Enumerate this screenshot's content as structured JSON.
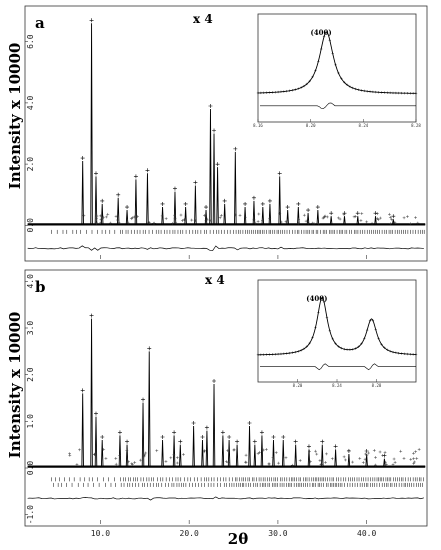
{
  "figure": {
    "ylabel": "Intensity x 10000",
    "xlabel": "2θ"
  },
  "chart_data": [
    {
      "type": "line",
      "panel_label": "a",
      "annotation": "x 4",
      "ylabel": "Intensity x 10000",
      "xlabel": "2θ",
      "xlim": [
        1.5,
        46.8
      ],
      "ylim": [
        -1.1,
        7.1
      ],
      "y_ticks": [
        "0.0",
        "2.0",
        "4.0",
        "6.0"
      ],
      "y_tick_values": [
        0,
        2,
        4,
        6
      ],
      "x_ticks": [
        "10.0",
        "20.0",
        "30.0",
        "40.0"
      ],
      "x_tick_values": [
        10,
        20,
        30,
        40
      ],
      "peaks": [
        {
          "x": 8.0,
          "y": 2.1
        },
        {
          "x": 9.0,
          "y": 6.6
        },
        {
          "x": 9.5,
          "y": 1.6
        },
        {
          "x": 10.2,
          "y": 0.7
        },
        {
          "x": 12.0,
          "y": 0.9
        },
        {
          "x": 13.0,
          "y": 0.5
        },
        {
          "x": 14.0,
          "y": 1.5
        },
        {
          "x": 15.3,
          "y": 1.7
        },
        {
          "x": 17.0,
          "y": 0.6
        },
        {
          "x": 18.4,
          "y": 1.1
        },
        {
          "x": 19.6,
          "y": 0.6
        },
        {
          "x": 20.7,
          "y": 1.3
        },
        {
          "x": 21.9,
          "y": 0.5
        },
        {
          "x": 22.4,
          "y": 3.8
        },
        {
          "x": 22.8,
          "y": 3.0
        },
        {
          "x": 23.2,
          "y": 1.9
        },
        {
          "x": 24.0,
          "y": 0.7
        },
        {
          "x": 25.2,
          "y": 2.4
        },
        {
          "x": 26.3,
          "y": 0.6
        },
        {
          "x": 27.3,
          "y": 0.8
        },
        {
          "x": 28.3,
          "y": 0.6
        },
        {
          "x": 29.1,
          "y": 0.7
        },
        {
          "x": 30.2,
          "y": 1.6
        },
        {
          "x": 31.1,
          "y": 0.5
        },
        {
          "x": 32.3,
          "y": 0.6
        },
        {
          "x": 33.4,
          "y": 0.4
        },
        {
          "x": 34.5,
          "y": 0.5
        },
        {
          "x": 36.0,
          "y": 0.3
        },
        {
          "x": 37.5,
          "y": 0.3
        },
        {
          "x": 39.0,
          "y": 0.3
        },
        {
          "x": 41.0,
          "y": 0.3
        },
        {
          "x": 43.0,
          "y": 0.2
        }
      ],
      "inset": {
        "label": "(400)",
        "x_ticks": [
          "8.16",
          "8.20",
          "8.24",
          "8.28"
        ],
        "x_tick_values": [
          8.16,
          8.2,
          8.24,
          8.28
        ],
        "xlim": [
          8.16,
          8.28
        ],
        "peaks": [
          {
            "x": 8.212,
            "y": 1.0
          }
        ]
      }
    },
    {
      "type": "line",
      "panel_label": "b",
      "annotation": "x 4",
      "ylabel": "Intensity x 10000",
      "xlabel": "2θ",
      "xlim": [
        1.5,
        46.8
      ],
      "ylim": [
        -1.2,
        4.2
      ],
      "y_ticks": [
        "-1.0",
        "0.0",
        "1.0",
        "2.0",
        "3.0",
        "4.0"
      ],
      "y_tick_values": [
        -1,
        0,
        1,
        2,
        3,
        4
      ],
      "x_ticks": [
        "10.0",
        "20.0",
        "30.0",
        "40.0"
      ],
      "x_tick_values": [
        10,
        20,
        30,
        40
      ],
      "peaks": [
        {
          "x": 8.0,
          "y": 1.6
        },
        {
          "x": 9.0,
          "y": 3.2
        },
        {
          "x": 9.5,
          "y": 1.1
        },
        {
          "x": 10.2,
          "y": 0.6
        },
        {
          "x": 12.2,
          "y": 0.7
        },
        {
          "x": 13.0,
          "y": 0.5
        },
        {
          "x": 14.8,
          "y": 1.4
        },
        {
          "x": 15.5,
          "y": 2.5
        },
        {
          "x": 17.0,
          "y": 0.6
        },
        {
          "x": 18.3,
          "y": 0.7
        },
        {
          "x": 19.0,
          "y": 0.5
        },
        {
          "x": 20.5,
          "y": 0.9
        },
        {
          "x": 21.5,
          "y": 0.6
        },
        {
          "x": 22.0,
          "y": 0.8
        },
        {
          "x": 22.8,
          "y": 1.8
        },
        {
          "x": 23.8,
          "y": 0.7
        },
        {
          "x": 24.5,
          "y": 0.6
        },
        {
          "x": 25.4,
          "y": 0.5
        },
        {
          "x": 26.8,
          "y": 0.9
        },
        {
          "x": 27.4,
          "y": 0.5
        },
        {
          "x": 28.2,
          "y": 0.7
        },
        {
          "x": 29.5,
          "y": 0.6
        },
        {
          "x": 30.6,
          "y": 0.6
        },
        {
          "x": 32.0,
          "y": 0.5
        },
        {
          "x": 33.5,
          "y": 0.4
        },
        {
          "x": 35.0,
          "y": 0.5
        },
        {
          "x": 36.5,
          "y": 0.4
        },
        {
          "x": 38.0,
          "y": 0.3
        },
        {
          "x": 40.0,
          "y": 0.3
        },
        {
          "x": 42.0,
          "y": 0.2
        }
      ],
      "inset": {
        "label": "(400)",
        "x_ticks": [
          "8.20",
          "8.24",
          "8.28"
        ],
        "x_tick_values": [
          8.2,
          8.24,
          8.28
        ],
        "xlim": [
          8.16,
          8.32
        ],
        "peaks": [
          {
            "x": 8.225,
            "y": 1.0
          },
          {
            "x": 8.275,
            "y": 0.62
          }
        ]
      }
    }
  ]
}
